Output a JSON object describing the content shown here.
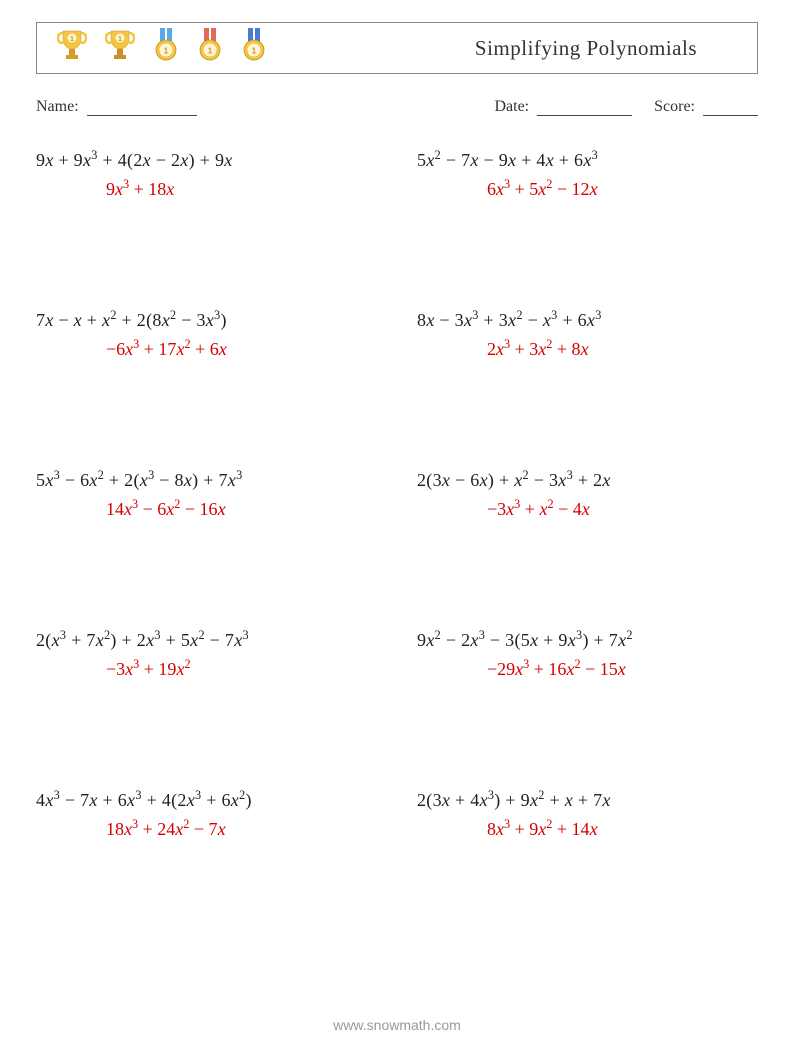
{
  "worksheet": {
    "title": "Simplifying Polynomials",
    "name_label": "Name:",
    "date_label": "Date:",
    "score_label": "Score:",
    "footer": "www.snowmath.com",
    "problem_color": "#222222",
    "answer_color": "#d40000",
    "font_family": "Georgia, serif",
    "grid": {
      "columns": 2,
      "rows": 5
    }
  },
  "medals": [
    {
      "name": "trophy-gold",
      "cup_color": "#f4c542",
      "base_color": "#d89b2a",
      "ribbon_color": null,
      "badge": "1"
    },
    {
      "name": "trophy-gold-tall",
      "cup_color": "#f4c542",
      "base_color": "#c98f24",
      "ribbon_color": null,
      "badge": "1"
    },
    {
      "name": "medal-gold",
      "cup_color": "#f4c542",
      "base_color": null,
      "ribbon_color": "#5aa9e6",
      "badge": "1"
    },
    {
      "name": "medal-gold-red",
      "cup_color": "#f4c542",
      "base_color": null,
      "ribbon_color": "#e06b5a",
      "badge": "1"
    },
    {
      "name": "medal-gold-blue",
      "cup_color": "#f4c542",
      "base_color": null,
      "ribbon_color": "#4a7bd4",
      "badge": "1"
    }
  ],
  "problems": [
    {
      "expr": "9x + 9x³ + 4(2x − 2x) + 9x",
      "answer": "9x³ + 18x"
    },
    {
      "expr": "5x² − 7x − 9x + 4x + 6x³",
      "answer": "6x³ + 5x² − 12x"
    },
    {
      "expr": "7x − x + x² + 2(8x² − 3x³)",
      "answer": "−6x³ + 17x² + 6x"
    },
    {
      "expr": "8x − 3x³ + 3x² − x³ + 6x³",
      "answer": "2x³ + 3x² + 8x"
    },
    {
      "expr": "5x³ − 6x² + 2(x³ − 8x) + 7x³",
      "answer": "14x³ − 6x² − 16x"
    },
    {
      "expr": "2(3x − 6x) + x² − 3x³ + 2x",
      "answer": "−3x³ + x² − 4x"
    },
    {
      "expr": "2(x³ + 7x²) + 2x³ + 5x² − 7x³",
      "answer": "−3x³ + 19x²"
    },
    {
      "expr": "9x² − 2x³ − 3(5x + 9x³) + 7x²",
      "answer": "−29x³ + 16x² − 15x"
    },
    {
      "expr": "4x³ − 7x + 6x³ + 4(2x³ + 6x²)",
      "answer": "18x³ + 24x² − 7x"
    },
    {
      "expr": "2(3x + 4x³) + 9x² + x + 7x",
      "answer": "8x³ + 9x² + 14x"
    }
  ]
}
